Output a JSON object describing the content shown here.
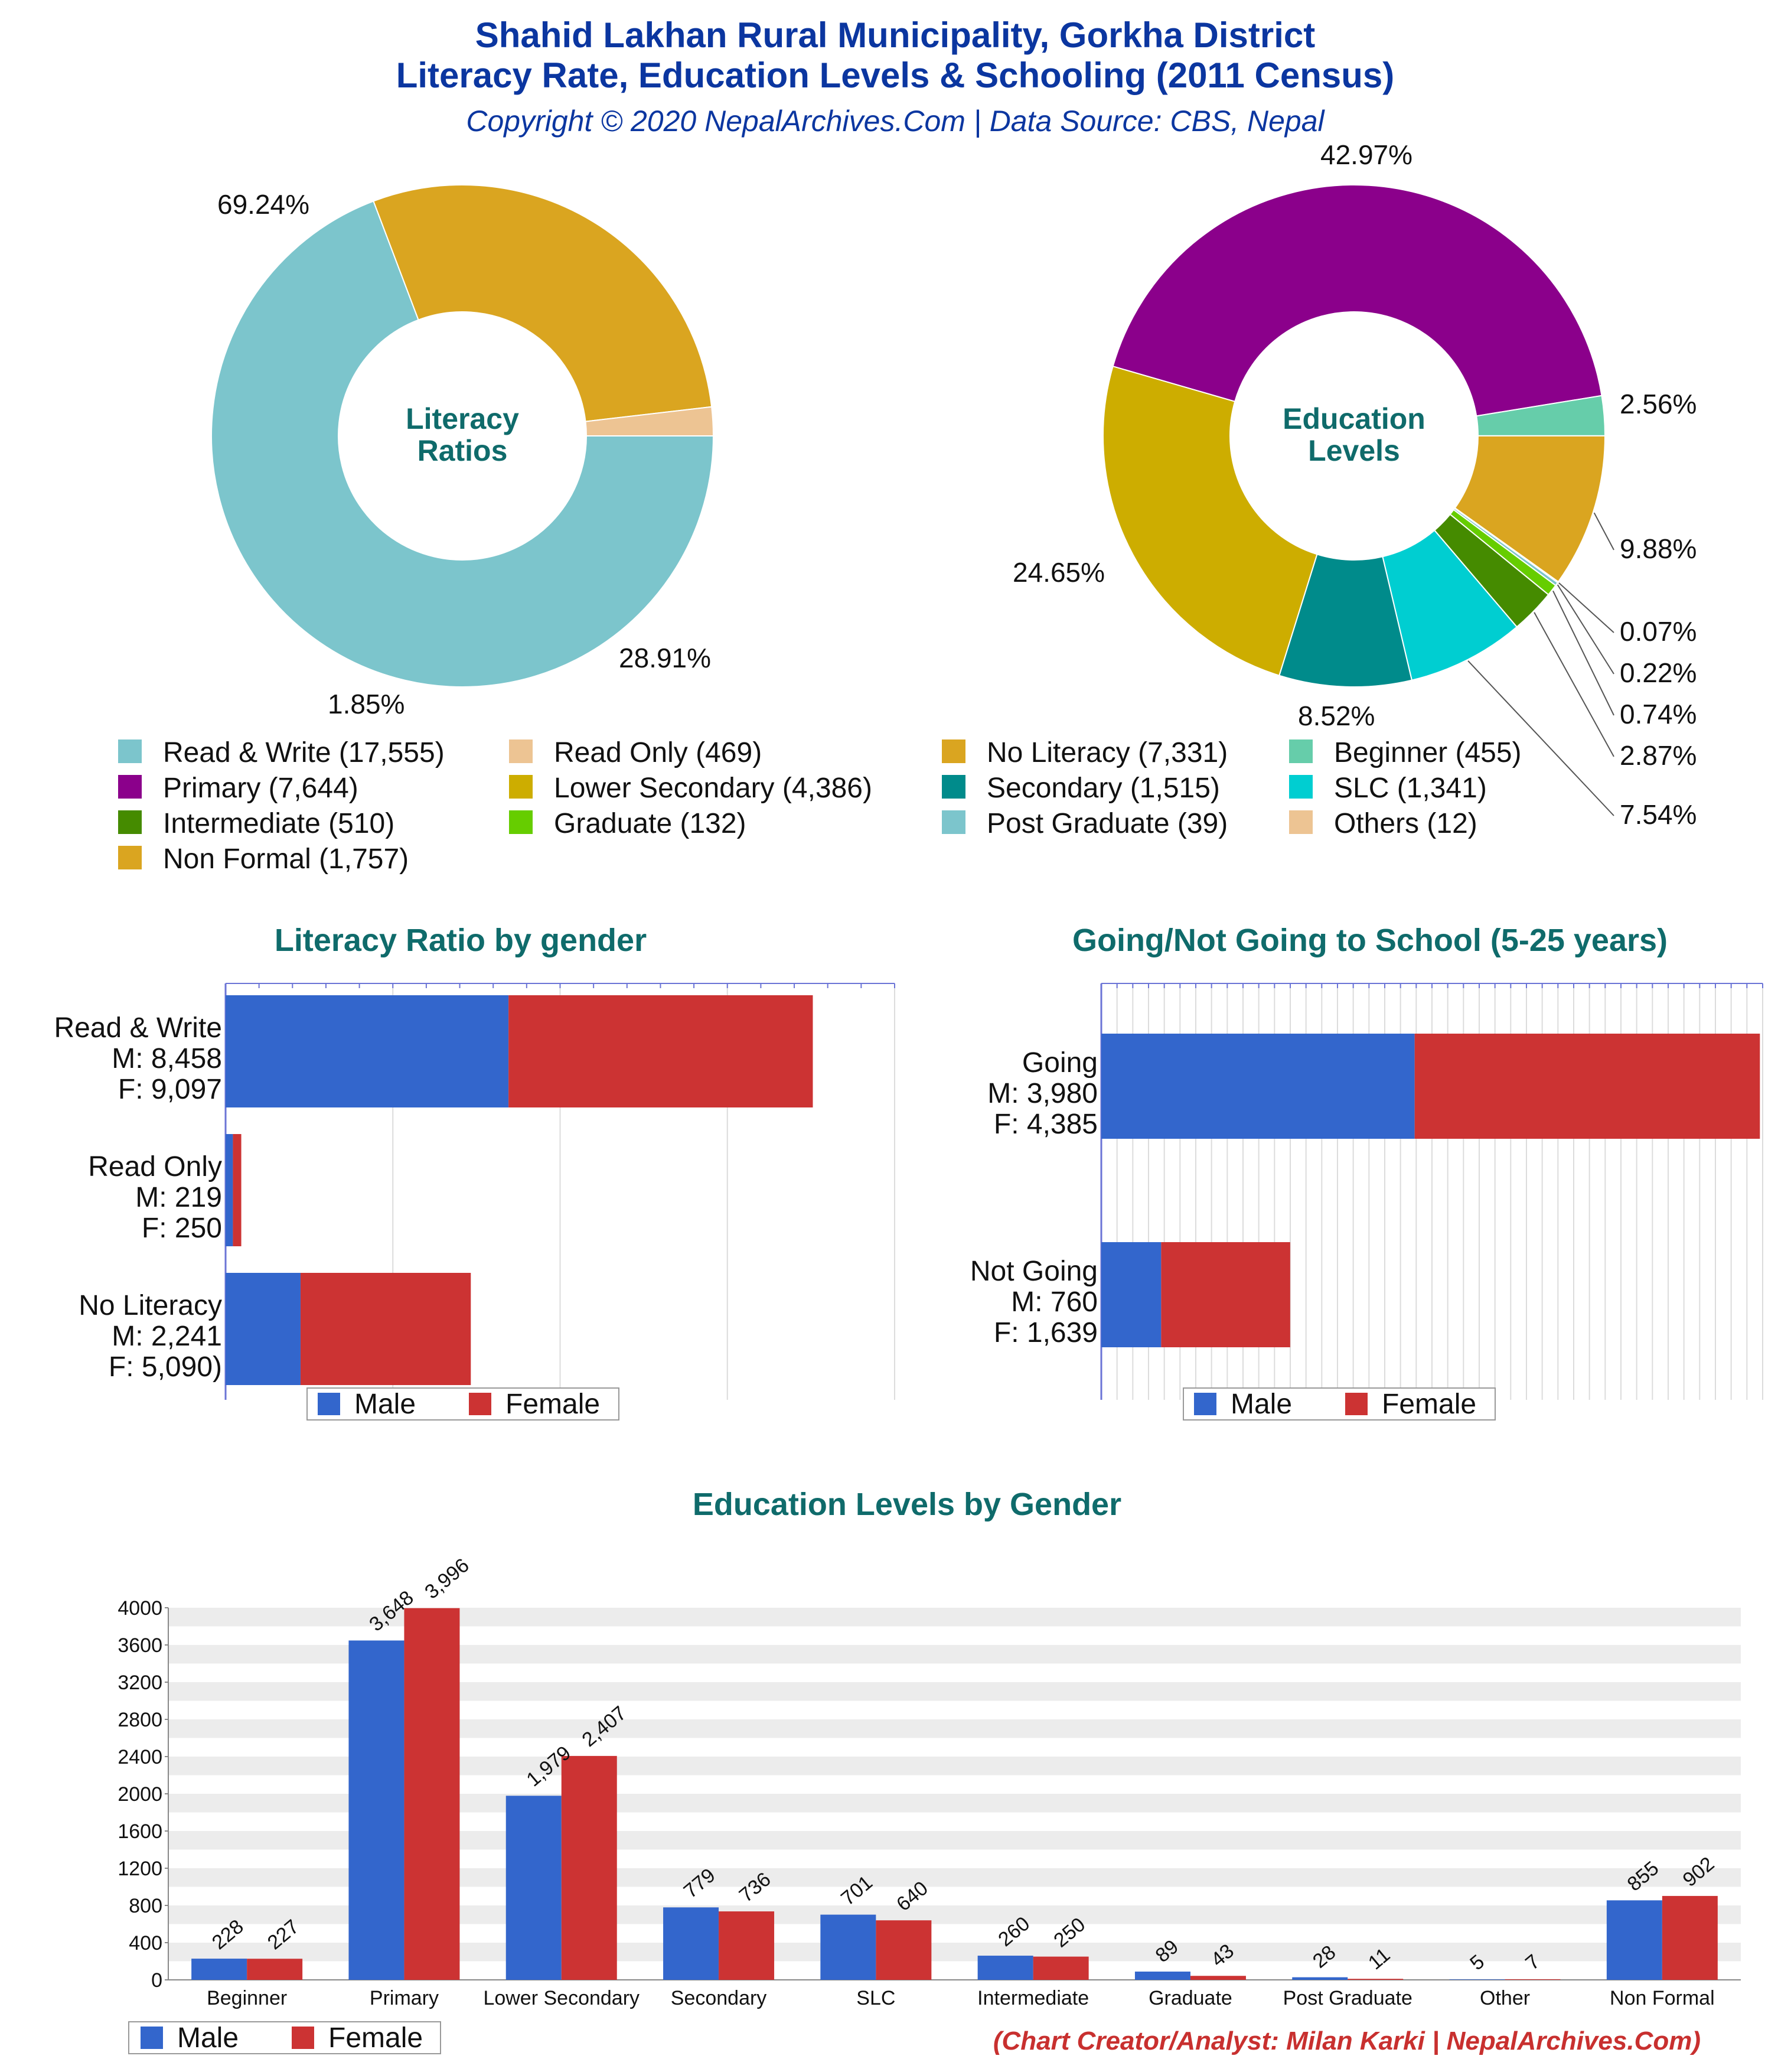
{
  "header": {
    "title_line1": "Shahid Lakhan Rural Municipality, Gorkha District",
    "title_line2": "Literacy Rate, Education Levels & Schooling (2011 Census)",
    "subtitle": "Copyright © 2020 NepalArchives.Com | Data Source: CBS, Nepal"
  },
  "colors": {
    "male": "#3366cc",
    "female": "#cc3333",
    "section_title": "#0f6b6b",
    "header_title": "#0b36a0",
    "credit": "#c8302f"
  },
  "legend_pies": [
    {
      "label": "Read & Write (17,555)",
      "color": "#7cc5cc"
    },
    {
      "label": "Read Only (469)",
      "color": "#edc493"
    },
    {
      "label": "No Literacy (7,331)",
      "color": "#daa520"
    },
    {
      "label": "Beginner (455)",
      "color": "#66cdaa"
    },
    {
      "label": "Primary (7,644)",
      "color": "#8b008b"
    },
    {
      "label": "Lower Secondary (4,386)",
      "color": "#cdad00"
    },
    {
      "label": "Secondary (1,515)",
      "color": "#008b8b"
    },
    {
      "label": "SLC (1,341)",
      "color": "#00ced1"
    },
    {
      "label": "Intermediate (510)",
      "color": "#458b00"
    },
    {
      "label": "Graduate (132)",
      "color": "#66cd00"
    },
    {
      "label": "Post Graduate (39)",
      "color": "#7cc5cc"
    },
    {
      "label": "Others (12)",
      "color": "#edc493"
    },
    {
      "label": "Non Formal (1,757)",
      "color": "#daa520"
    }
  ],
  "bar_legend": {
    "male": "Male",
    "female": "Female"
  },
  "credit": "(Chart Creator/Analyst: Milan Karki | NepalArchives.Com)",
  "chart_data": [
    {
      "type": "pie",
      "title": "Literacy Ratios",
      "slices": [
        {
          "label": "Read & Write",
          "value": 17555,
          "pct": "69.24%",
          "color": "#7cc5cc"
        },
        {
          "label": "No Literacy",
          "value": 7331,
          "pct": "28.91%",
          "color": "#daa520"
        },
        {
          "label": "Read Only",
          "value": 469,
          "pct": "1.85%",
          "color": "#edc493"
        }
      ]
    },
    {
      "type": "pie",
      "title": "Education Levels",
      "slices": [
        {
          "label": "Primary",
          "value": 7644,
          "pct": "42.97%",
          "color": "#8b008b"
        },
        {
          "label": "Beginner",
          "value": 455,
          "pct": "2.56%",
          "color": "#66cdaa"
        },
        {
          "label": "Non Formal",
          "value": 1757,
          "pct": "9.88%",
          "color": "#daa520"
        },
        {
          "label": "Others",
          "value": 12,
          "pct": "0.07%",
          "color": "#edc493"
        },
        {
          "label": "Post Graduate",
          "value": 39,
          "pct": "0.22%",
          "color": "#7cc5cc"
        },
        {
          "label": "Graduate",
          "value": 132,
          "pct": "0.74%",
          "color": "#66cd00"
        },
        {
          "label": "Intermediate",
          "value": 510,
          "pct": "2.87%",
          "color": "#458b00"
        },
        {
          "label": "SLC",
          "value": 1341,
          "pct": "7.54%",
          "color": "#00ced1"
        },
        {
          "label": "Secondary",
          "value": 1515,
          "pct": "8.52%",
          "color": "#008b8b"
        },
        {
          "label": "Lower Secondary",
          "value": 4386,
          "pct": "24.65%",
          "color": "#cdad00"
        }
      ]
    },
    {
      "type": "bar",
      "orientation": "horizontal",
      "stacked": true,
      "title": "Literacy Ratio by gender",
      "categories": [
        "Read & Write",
        "Read Only",
        "No Literacy"
      ],
      "category_labels": [
        [
          "Read & Write",
          "M: 8,458",
          "F: 9,097"
        ],
        [
          "Read Only",
          "M: 219",
          "F: 250"
        ],
        [
          "No Literacy",
          "M: 2,241",
          "F: 5,090)"
        ]
      ],
      "series": [
        {
          "name": "Male",
          "values": [
            8458,
            219,
            2241
          ]
        },
        {
          "name": "Female",
          "values": [
            9097,
            250,
            5090
          ]
        }
      ],
      "xlim": [
        0,
        20000
      ],
      "legend": "bottom"
    },
    {
      "type": "bar",
      "orientation": "horizontal",
      "stacked": true,
      "title": "Going/Not Going to School (5-25 years)",
      "categories": [
        "Going",
        "Not Going"
      ],
      "category_labels": [
        [
          "Going",
          "M: 3,980",
          "F: 4,385"
        ],
        [
          "Not Going",
          "M: 760",
          "F: 1,639"
        ]
      ],
      "series": [
        {
          "name": "Male",
          "values": [
            3980,
            760
          ]
        },
        {
          "name": "Female",
          "values": [
            4385,
            1639
          ]
        }
      ],
      "xlim": [
        0,
        8400
      ],
      "legend": "bottom"
    },
    {
      "type": "bar",
      "title": "Education Levels by Gender",
      "categories": [
        "Beginner",
        "Primary",
        "Lower Secondary",
        "Secondary",
        "SLC",
        "Intermediate",
        "Graduate",
        "Post Graduate",
        "Other",
        "Non Formal"
      ],
      "series": [
        {
          "name": "Male",
          "values": [
            228,
            3648,
            1979,
            779,
            701,
            260,
            89,
            28,
            5,
            855
          ],
          "labels": [
            "228",
            "3,648",
            "1,979",
            "779",
            "701",
            "260",
            "89",
            "28",
            "5",
            "855"
          ]
        },
        {
          "name": "Female",
          "values": [
            227,
            3996,
            2407,
            736,
            640,
            250,
            43,
            11,
            7,
            902
          ],
          "labels": [
            "227",
            "3,996",
            "2,407",
            "736",
            "640",
            "250",
            "43",
            "11",
            "7",
            "902"
          ]
        }
      ],
      "yticks": [
        "0",
        "400",
        "800",
        "1200",
        "1600",
        "2000",
        "2400",
        "2800",
        "3200",
        "3600",
        "4000"
      ],
      "ylim": [
        0,
        4000
      ],
      "legend": "bottom-left"
    }
  ]
}
